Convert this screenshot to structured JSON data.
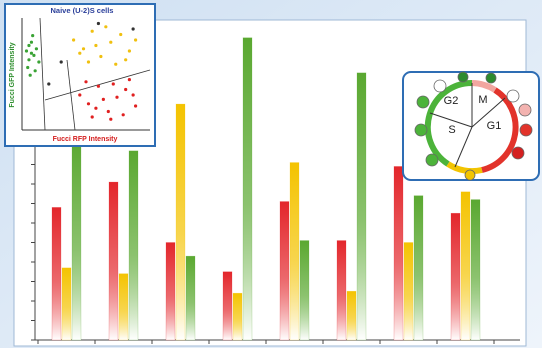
{
  "chart_data": [
    {
      "type": "bar",
      "categories": [
        null,
        null,
        null,
        null,
        null,
        null,
        null,
        null
      ],
      "series": [
        {
          "color": "#e3262b",
          "values": [
            6.8,
            8.1,
            5.0,
            3.5,
            7.1,
            5.1,
            8.9,
            6.5
          ]
        },
        {
          "color": "#f4c300",
          "values": [
            3.7,
            3.4,
            12.1,
            2.4,
            9.1,
            2.5,
            5.0,
            7.6
          ]
        },
        {
          "color": "#5aa830",
          "values": [
            10.3,
            9.7,
            4.3,
            15.5,
            5.1,
            13.7,
            7.4,
            7.2
          ]
        }
      ],
      "ylim": [
        0,
        16
      ],
      "yticks": [
        0,
        1,
        2,
        3,
        4,
        5,
        6,
        7,
        8,
        9,
        10,
        11,
        12,
        13,
        14,
        15,
        16
      ]
    },
    {
      "type": "scatter",
      "title": "Naive (U-2)S cells",
      "x_label": "Fucci RFP Intensity",
      "y_label": "Fucci GFP Intensity",
      "xlim": [
        0,
        100
      ],
      "ylim": [
        0,
        100
      ],
      "series": [
        {
          "color": "#3aa335",
          "x": [
            2,
            4,
            6,
            3,
            8,
            5,
            10,
            7,
            12,
            4,
            9,
            6
          ],
          "y": [
            70,
            62,
            78,
            55,
            66,
            48,
            72,
            84,
            60,
            75,
            52,
            68
          ]
        },
        {
          "color": "#f0c010",
          "x": [
            40,
            48,
            55,
            62,
            70,
            78,
            85,
            52,
            66,
            74,
            58,
            82,
            45,
            90
          ],
          "y": [
            80,
            72,
            88,
            65,
            78,
            85,
            70,
            60,
            92,
            58,
            75,
            62,
            68,
            80
          ]
        },
        {
          "color": "#e02020",
          "x": [
            45,
            52,
            60,
            68,
            75,
            82,
            90,
            55,
            64,
            72,
            80,
            88,
            50,
            70,
            85,
            58
          ],
          "y": [
            30,
            22,
            38,
            15,
            28,
            35,
            20,
            10,
            26,
            40,
            12,
            30,
            42,
            8,
            44,
            18
          ]
        },
        {
          "color": "#333333",
          "x": [
            30,
            60,
            20,
            88
          ],
          "y": [
            60,
            95,
            40,
            90
          ]
        }
      ]
    }
  ],
  "diagram": {
    "phases": [
      "G2",
      "M",
      "S",
      "G1"
    ]
  }
}
